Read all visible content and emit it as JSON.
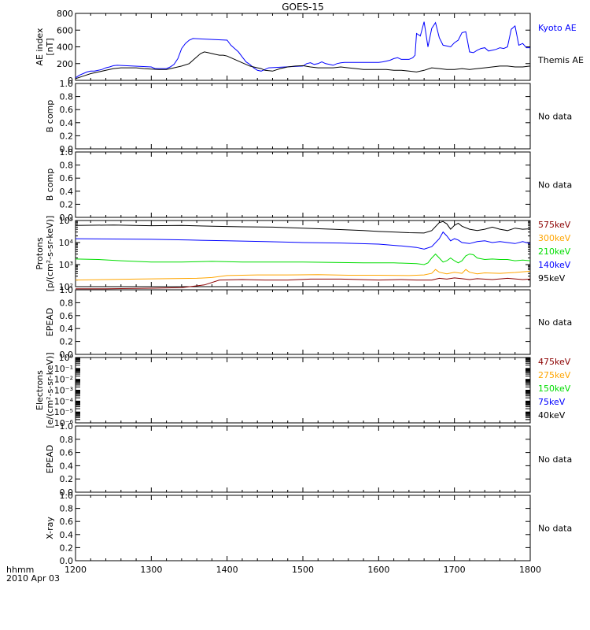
{
  "title": "GOES-15",
  "x_axis": {
    "row1_label": "hhmm",
    "row2_label": "2010 Apr 03",
    "tick_labels": [
      "1200",
      "1300",
      "1400",
      "1500",
      "1600",
      "1700",
      "1800"
    ]
  },
  "chart_data": [
    {
      "type": "line",
      "ylabel": [
        "AE index",
        "[nT]"
      ],
      "ylim": [
        0,
        800
      ],
      "ytick_labels": [
        "0",
        "200",
        "400",
        "600",
        "800"
      ],
      "x_range": [
        1200,
        1800
      ],
      "series": [
        {
          "name": "Kyoto AE",
          "color": "#0000ff",
          "x": [
            1200,
            1205,
            1210,
            1215,
            1220,
            1225,
            1230,
            1235,
            1240,
            1245,
            1250,
            1255,
            1300,
            1305,
            1310,
            1315,
            1320,
            1325,
            1330,
            1335,
            1340,
            1345,
            1350,
            1355,
            1400,
            1405,
            1410,
            1415,
            1420,
            1425,
            1430,
            1435,
            1440,
            1445,
            1450,
            1455,
            1500,
            1505,
            1510,
            1515,
            1520,
            1525,
            1530,
            1535,
            1540,
            1545,
            1550,
            1555,
            1600,
            1605,
            1610,
            1615,
            1620,
            1625,
            1630,
            1635,
            1640,
            1645,
            1648,
            1650,
            1655,
            1660,
            1665,
            1670,
            1675,
            1680,
            1685,
            1690,
            1695,
            1700,
            1705,
            1710,
            1715,
            1720,
            1725,
            1730,
            1735,
            1740,
            1745,
            1750,
            1755,
            1760,
            1765,
            1770,
            1775,
            1780,
            1785,
            1790,
            1795,
            1800
          ],
          "y": [
            30,
            60,
            80,
            100,
            110,
            110,
            120,
            130,
            150,
            160,
            175,
            180,
            160,
            140,
            140,
            140,
            140,
            160,
            190,
            260,
            380,
            440,
            480,
            500,
            480,
            420,
            380,
            340,
            280,
            220,
            190,
            150,
            120,
            110,
            130,
            150,
            170,
            200,
            210,
            190,
            200,
            220,
            200,
            190,
            180,
            200,
            210,
            215,
            215,
            220,
            230,
            240,
            260,
            270,
            250,
            250,
            250,
            270,
            300,
            560,
            530,
            700,
            400,
            620,
            690,
            510,
            420,
            410,
            400,
            450,
            480,
            570,
            580,
            340,
            330,
            360,
            380,
            390,
            350,
            360,
            370,
            390,
            380,
            400,
            610,
            650,
            420,
            440,
            390,
            390
          ]
        },
        {
          "name": "Themis AE",
          "color": "#000000",
          "x": [
            1200,
            1210,
            1220,
            1230,
            1240,
            1250,
            1260,
            1270,
            1280,
            1290,
            1300,
            1310,
            1320,
            1330,
            1340,
            1350,
            1355,
            1360,
            1365,
            1370,
            1375,
            1380,
            1385,
            1390,
            1395,
            1400,
            1405,
            1410,
            1415,
            1420,
            1425,
            1430,
            1435,
            1440,
            1445,
            1450,
            1460,
            1470,
            1480,
            1490,
            1500,
            1510,
            1520,
            1530,
            1540,
            1550,
            1560,
            1570,
            1580,
            1590,
            1600,
            1610,
            1620,
            1630,
            1640,
            1650,
            1660,
            1670,
            1680,
            1690,
            1700,
            1710,
            1720,
            1730,
            1740,
            1750,
            1760,
            1770,
            1780,
            1790,
            1800
          ],
          "y": [
            20,
            50,
            80,
            100,
            120,
            140,
            150,
            150,
            150,
            140,
            135,
            130,
            130,
            150,
            170,
            200,
            240,
            280,
            320,
            340,
            330,
            320,
            310,
            300,
            300,
            290,
            270,
            250,
            230,
            210,
            190,
            170,
            160,
            150,
            140,
            120,
            110,
            140,
            160,
            170,
            175,
            160,
            150,
            150,
            150,
            160,
            150,
            140,
            130,
            130,
            130,
            130,
            120,
            120,
            110,
            100,
            120,
            150,
            140,
            130,
            130,
            140,
            130,
            140,
            150,
            160,
            170,
            170,
            160,
            160,
            170
          ]
        }
      ]
    },
    {
      "type": "line",
      "ylabel": [
        "B comp"
      ],
      "ylim": [
        0,
        1
      ],
      "ytick_labels": [
        "0.0",
        "0.2",
        "0.4",
        "0.6",
        "0.8",
        "1.0"
      ],
      "side_label": "No data",
      "series": []
    },
    {
      "type": "line",
      "ylabel": [
        "B comp"
      ],
      "ylim": [
        0,
        1
      ],
      "ytick_labels": [
        "0.0",
        "0.2",
        "0.4",
        "0.6",
        "0.8",
        "1.0"
      ],
      "side_label": "No data",
      "series": []
    },
    {
      "type": "line",
      "scale": "log",
      "ylabel": [
        "Protons",
        "[p/(cm²-s-sr-keV)]"
      ],
      "ylim": [
        100,
        100000
      ],
      "ytick_labels": [
        "10²",
        "10³",
        "10⁴",
        "10⁵"
      ],
      "x_range": [
        1200,
        1800
      ],
      "series": [
        {
          "name": "575keV",
          "color": "#8b0000",
          "x": [
            1200,
            1240,
            1270,
            1300,
            1340,
            1370,
            1390,
            1420,
            1450,
            1480,
            1510,
            1550,
            1600,
            1630,
            1650,
            1670,
            1680,
            1690,
            1700,
            1710,
            1720,
            1730,
            1750,
            1770,
            1790,
            1800
          ],
          "y": [
            80,
            80,
            82,
            85,
            90,
            120,
            200,
            210,
            200,
            200,
            220,
            220,
            200,
            210,
            200,
            200,
            240,
            220,
            250,
            230,
            210,
            230,
            210,
            240,
            210,
            220
          ]
        },
        {
          "name": "300keV",
          "color": "#ffa500",
          "x": [
            1200,
            1240,
            1280,
            1320,
            1360,
            1380,
            1400,
            1440,
            1480,
            1520,
            1560,
            1600,
            1640,
            1660,
            1670,
            1675,
            1680,
            1690,
            1700,
            1710,
            1715,
            1720,
            1730,
            1740,
            1760,
            1780,
            1800
          ],
          "y": [
            200,
            210,
            220,
            230,
            240,
            260,
            320,
            340,
            340,
            350,
            330,
            330,
            320,
            340,
            400,
            600,
            450,
            380,
            450,
            400,
            600,
            450,
            380,
            420,
            400,
            440,
            500
          ]
        },
        {
          "name": "210keV",
          "color": "#00dd00",
          "x": [
            1200,
            1230,
            1260,
            1300,
            1340,
            1380,
            1420,
            1460,
            1500,
            1540,
            1580,
            1620,
            1650,
            1660,
            1665,
            1670,
            1675,
            1680,
            1685,
            1690,
            1695,
            1700,
            1705,
            1710,
            1715,
            1720,
            1725,
            1730,
            1740,
            1750,
            1760,
            1770,
            1780,
            1790,
            1800
          ],
          "y": [
            1800,
            1700,
            1500,
            1300,
            1300,
            1400,
            1300,
            1300,
            1300,
            1250,
            1200,
            1200,
            1100,
            1000,
            1200,
            2000,
            3000,
            2000,
            1300,
            1500,
            2000,
            1500,
            1200,
            1500,
            2500,
            3000,
            2800,
            2000,
            1700,
            1800,
            1700,
            1700,
            1500,
            1600,
            1500
          ]
        },
        {
          "name": "140keV",
          "color": "#0000ff",
          "x": [
            1200,
            1250,
            1300,
            1350,
            1400,
            1450,
            1500,
            1550,
            1600,
            1630,
            1650,
            1660,
            1670,
            1680,
            1685,
            1690,
            1695,
            1700,
            1705,
            1710,
            1720,
            1730,
            1740,
            1750,
            1760,
            1770,
            1780,
            1790,
            1800
          ],
          "y": [
            15000,
            14500,
            14000,
            13000,
            12000,
            11000,
            10000,
            9500,
            8500,
            7000,
            6000,
            5000,
            6500,
            15000,
            30000,
            20000,
            12000,
            15000,
            13000,
            10000,
            9000,
            11000,
            12000,
            10000,
            11000,
            10000,
            9000,
            11000,
            9000
          ]
        },
        {
          "name": "95keV",
          "color": "#000000",
          "x": [
            1200,
            1250,
            1300,
            1340,
            1380,
            1420,
            1460,
            1500,
            1540,
            1580,
            1600,
            1620,
            1640,
            1660,
            1670,
            1680,
            1685,
            1690,
            1695,
            1700,
            1705,
            1710,
            1720,
            1730,
            1740,
            1750,
            1760,
            1770,
            1780,
            1790,
            1800
          ],
          "y": [
            60000,
            62000,
            58000,
            60000,
            55000,
            52000,
            50000,
            45000,
            40000,
            35000,
            32000,
            30000,
            28000,
            27000,
            35000,
            80000,
            90000,
            70000,
            40000,
            60000,
            75000,
            55000,
            40000,
            35000,
            40000,
            50000,
            40000,
            35000,
            45000,
            40000,
            42000
          ]
        }
      ]
    },
    {
      "type": "line",
      "ylabel": [
        "EPEAD"
      ],
      "ylim": [
        0,
        1
      ],
      "ytick_labels": [
        "0.0",
        "0.2",
        "0.4",
        "0.6",
        "0.8",
        "1.0"
      ],
      "side_label": "No data",
      "series": []
    },
    {
      "type": "line",
      "scale": "log",
      "ylabel": [
        "Electrons",
        "[e/(cm²-s-sr-keV)]"
      ],
      "ylim": [
        1e-06,
        1
      ],
      "ytick_labels": [
        "10⁰",
        "10⁻¹",
        "10⁻²",
        "10⁻³",
        "10⁻⁴",
        "10⁻⁵",
        "10⁻⁶"
      ],
      "legend": [
        {
          "name": "475keV",
          "color": "#8b0000"
        },
        {
          "name": "275keV",
          "color": "#ffa500"
        },
        {
          "name": "150keV",
          "color": "#00dd00"
        },
        {
          "name": "75keV",
          "color": "#0000ff"
        },
        {
          "name": "40keV",
          "color": "#000000"
        }
      ],
      "series": []
    },
    {
      "type": "line",
      "ylabel": [
        "EPEAD"
      ],
      "ylim": [
        0,
        1
      ],
      "ytick_labels": [
        "0.0",
        "0.2",
        "0.4",
        "0.6",
        "0.8",
        "1.0"
      ],
      "side_label": "No data",
      "series": []
    },
    {
      "type": "line",
      "ylabel": [
        "X-ray"
      ],
      "ylim": [
        0,
        1
      ],
      "ytick_labels": [
        "0.0",
        "0.2",
        "0.4",
        "0.6",
        "0.8",
        "1.0"
      ],
      "side_label": "No data",
      "series": []
    }
  ]
}
